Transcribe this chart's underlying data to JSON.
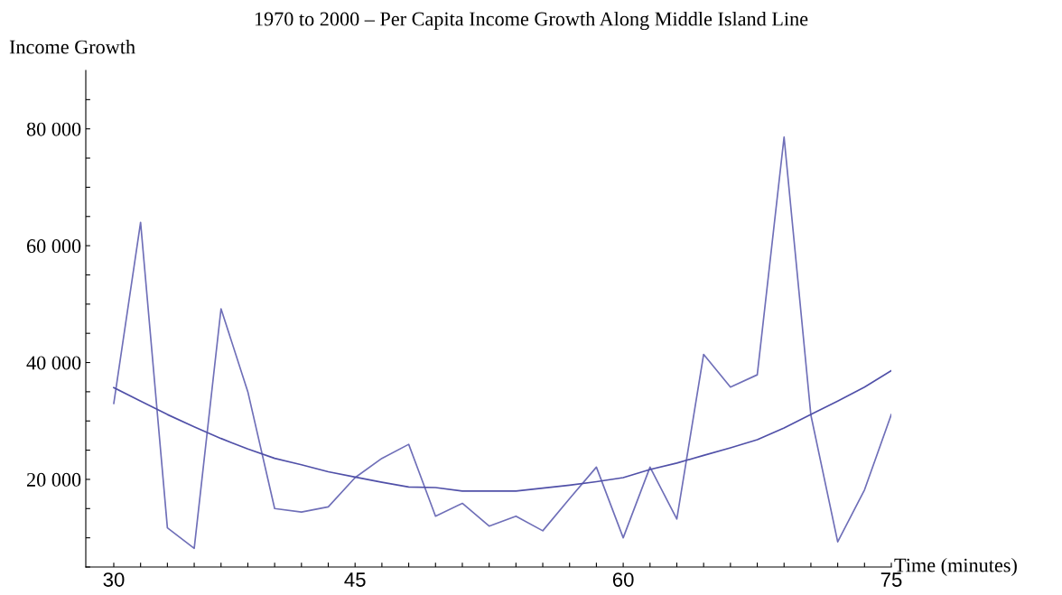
{
  "chart_data": {
    "type": "line",
    "title": "1970 to 2000 – Per Capita Income Growth Along Middle Island Line",
    "xlabel": "Time (minutes)",
    "ylabel": "Income Growth",
    "categories": [
      "30",
      null,
      null,
      null,
      null,
      null,
      null,
      null,
      null,
      "45",
      null,
      null,
      null,
      null,
      null,
      null,
      null,
      null,
      null,
      "60",
      null,
      null,
      null,
      null,
      null,
      null,
      null,
      null,
      null,
      "75"
    ],
    "series": [
      {
        "color": "#6f6fb8",
        "values": [
          33000,
          64000,
          11700,
          8200,
          49200,
          35000,
          15000,
          14400,
          15300,
          20300,
          23600,
          26000,
          13700,
          15900,
          12000,
          13700,
          11200,
          16700,
          22100,
          10000,
          22100,
          13200,
          41400,
          35800,
          37900,
          78600,
          31000,
          9300,
          18200,
          31100
        ]
      },
      {
        "color": "#5050a8",
        "values": [
          35700,
          33400,
          31100,
          29000,
          27000,
          25200,
          23600,
          22500,
          21300,
          20400,
          19500,
          18700,
          18600,
          18000,
          18000,
          18000,
          18500,
          19000,
          19600,
          20300,
          21700,
          22800,
          24100,
          25400,
          26800,
          28800,
          31100,
          33400,
          35800,
          38600
        ]
      }
    ],
    "ylim": [
      5000,
      90000
    ],
    "yticks": [
      {
        "value": 5000,
        "label": null
      },
      {
        "value": 10000,
        "label": null
      },
      {
        "value": 15000,
        "label": null
      },
      {
        "value": 20000,
        "label": "20 000"
      },
      {
        "value": 25000,
        "label": null
      },
      {
        "value": 30000,
        "label": null
      },
      {
        "value": 35000,
        "label": null
      },
      {
        "value": 40000,
        "label": "40 000"
      },
      {
        "value": 45000,
        "label": null
      },
      {
        "value": 50000,
        "label": null
      },
      {
        "value": 55000,
        "label": null
      },
      {
        "value": 60000,
        "label": "60 000"
      },
      {
        "value": 65000,
        "label": null
      },
      {
        "value": 70000,
        "label": null
      },
      {
        "value": 75000,
        "label": null
      },
      {
        "value": 80000,
        "label": "80 000"
      },
      {
        "value": 85000,
        "label": null
      }
    ],
    "grid": false,
    "marker": "none",
    "line_style": "solid"
  }
}
